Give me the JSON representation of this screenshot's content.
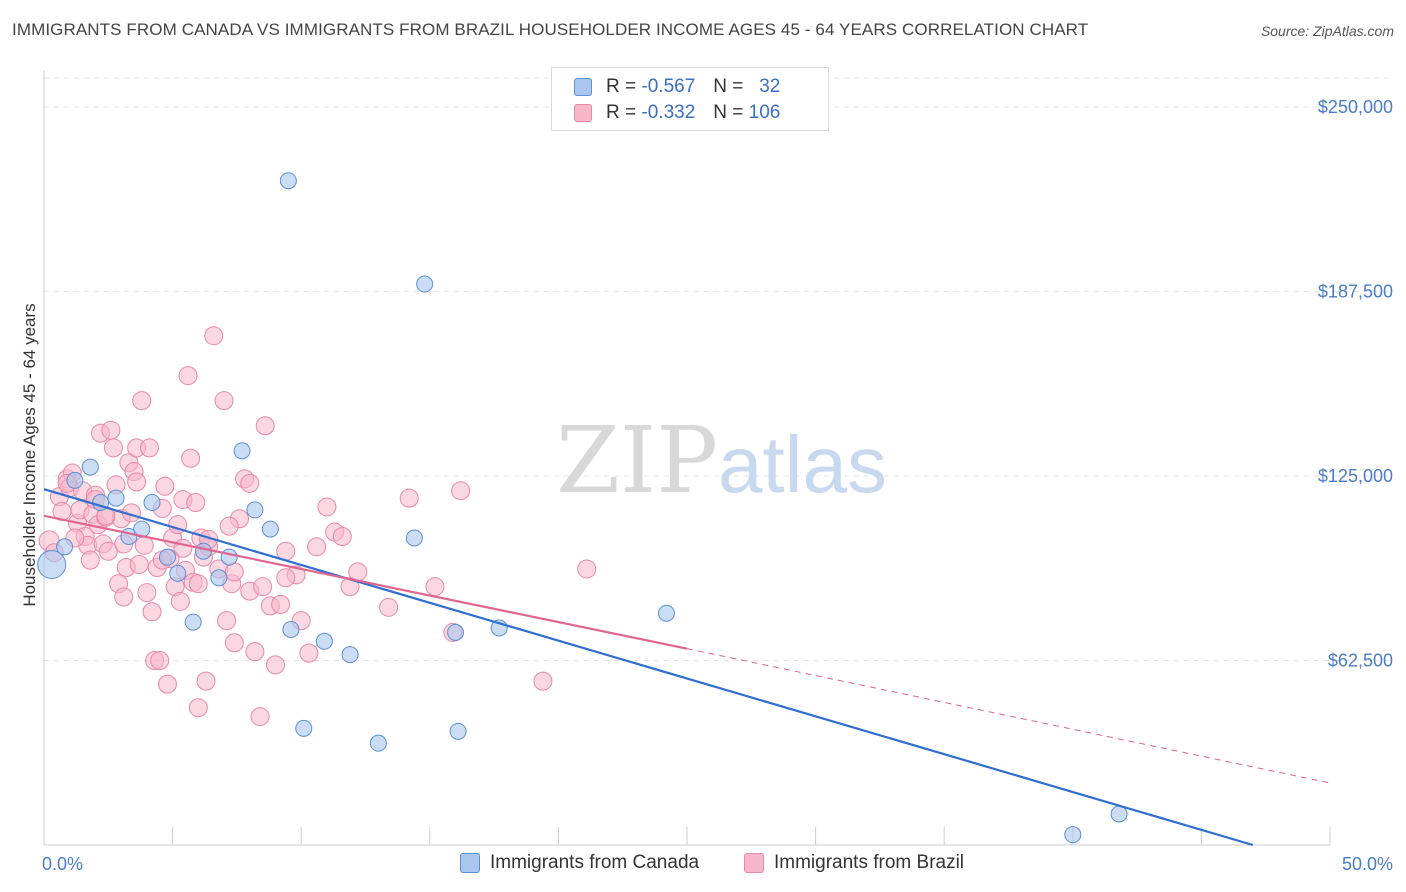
{
  "title": "IMMIGRANTS FROM CANADA VS IMMIGRANTS FROM BRAZIL HOUSEHOLDER INCOME AGES 45 - 64 YEARS CORRELATION CHART",
  "source": "Source: ZipAtlas.com",
  "watermark": {
    "zip": "ZIP",
    "atlas": "atlas"
  },
  "legend": {
    "r_label": "R =",
    "n_label": "N =",
    "canada": {
      "r": "-0.567",
      "n": "32"
    },
    "brazil": {
      "r": "-0.332",
      "n": "106"
    }
  },
  "colors": {
    "canada_fill": "#a9c6ee",
    "canada_stroke": "#5b8fd6",
    "canada_line": "#2f6fd0",
    "brazil_fill": "#f7b7cb",
    "brazil_stroke": "#e888a8",
    "brazil_line": "#e0658f",
    "tick_label": "#4a7cc7",
    "grid": "#e3e3e3"
  },
  "chart_data": {
    "type": "scatter",
    "title": "IMMIGRANTS FROM CANADA VS IMMIGRANTS FROM BRAZIL HOUSEHOLDER INCOME AGES 45 - 64 YEARS CORRELATION CHART",
    "xlabel": "",
    "ylabel": "Householder Income Ages 45 - 64 years",
    "xlim": [
      0,
      50
    ],
    "ylim": [
      0,
      262500
    ],
    "x_tick_labels": [
      "0.0%",
      "50.0%"
    ],
    "y_ticks": [
      62500,
      125000,
      187500,
      250000
    ],
    "y_tick_labels": [
      "$62,500",
      "$125,000",
      "$187,500",
      "$250,000"
    ],
    "grid": true,
    "legend_position": "top-center",
    "series": [
      {
        "name": "Immigrants from Canada",
        "trend": {
          "x": [
            0,
            47.0
          ],
          "y": [
            120500,
            0
          ]
        },
        "points": [
          [
            0.3,
            95000,
            14
          ],
          [
            1.2,
            123500,
            8
          ],
          [
            1.8,
            128000,
            8
          ],
          [
            2.2,
            116000,
            8
          ],
          [
            2.8,
            117500,
            8
          ],
          [
            3.3,
            104500,
            8
          ],
          [
            3.8,
            107000,
            8
          ],
          [
            4.2,
            116000,
            8
          ],
          [
            4.8,
            97500,
            8
          ],
          [
            5.2,
            92000,
            8
          ],
          [
            5.8,
            75500,
            8
          ],
          [
            6.2,
            99500,
            8
          ],
          [
            6.8,
            90500,
            8
          ],
          [
            7.2,
            97500,
            8
          ],
          [
            7.7,
            133500,
            8
          ],
          [
            8.2,
            113500,
            8
          ],
          [
            8.8,
            107000,
            8
          ],
          [
            9.6,
            73000,
            8
          ],
          [
            9.5,
            225000,
            8
          ],
          [
            10.1,
            39500,
            8
          ],
          [
            10.9,
            69000,
            8
          ],
          [
            11.9,
            64500,
            8
          ],
          [
            13.0,
            34500,
            8
          ],
          [
            14.4,
            104000,
            8
          ],
          [
            14.8,
            190000,
            8
          ],
          [
            16.0,
            72000,
            8
          ],
          [
            16.1,
            38500,
            8
          ],
          [
            17.7,
            73500,
            8
          ],
          [
            24.2,
            78500,
            8
          ],
          [
            40.0,
            3500,
            8
          ],
          [
            41.8,
            10500,
            8
          ],
          [
            0.8,
            101000,
            8
          ]
        ]
      },
      {
        "name": "Immigrants from Brazil",
        "trend": {
          "x": [
            0,
            25.0
          ],
          "y": [
            111500,
            66500
          ]
        },
        "trend_ext": {
          "x": [
            25.0,
            50
          ],
          "y": [
            66500,
            21000
          ]
        },
        "points": [
          [
            0.2,
            103000,
            10
          ],
          [
            0.4,
            99000,
            9
          ],
          [
            0.6,
            118000,
            9
          ],
          [
            0.7,
            113000,
            9
          ],
          [
            0.9,
            124000,
            9
          ],
          [
            1.0,
            121000,
            9
          ],
          [
            1.1,
            126000,
            9
          ],
          [
            1.3,
            109000,
            9
          ],
          [
            1.4,
            113500,
            9
          ],
          [
            1.5,
            120000,
            9
          ],
          [
            1.6,
            104500,
            9
          ],
          [
            1.7,
            101500,
            9
          ],
          [
            1.8,
            96500,
            9
          ],
          [
            1.9,
            112000,
            9
          ],
          [
            2.0,
            118500,
            9
          ],
          [
            2.1,
            108500,
            9
          ],
          [
            2.2,
            139500,
            9
          ],
          [
            2.3,
            102000,
            9
          ],
          [
            2.4,
            111000,
            9
          ],
          [
            2.5,
            99500,
            9
          ],
          [
            2.6,
            140500,
            9
          ],
          [
            2.7,
            134500,
            9
          ],
          [
            2.8,
            122000,
            9
          ],
          [
            2.9,
            88500,
            9
          ],
          [
            3.0,
            110500,
            9
          ],
          [
            3.1,
            84000,
            9
          ],
          [
            3.2,
            94000,
            9
          ],
          [
            3.3,
            129500,
            9
          ],
          [
            3.4,
            112500,
            9
          ],
          [
            3.5,
            126500,
            9
          ],
          [
            3.6,
            134500,
            9
          ],
          [
            3.7,
            95000,
            9
          ],
          [
            3.8,
            150500,
            9
          ],
          [
            3.9,
            101500,
            9
          ],
          [
            4.0,
            85500,
            9
          ],
          [
            4.1,
            134500,
            9
          ],
          [
            4.2,
            79000,
            9
          ],
          [
            4.3,
            62500,
            9
          ],
          [
            4.4,
            94000,
            9
          ],
          [
            4.5,
            62500,
            9
          ],
          [
            4.6,
            114000,
            9
          ],
          [
            4.7,
            121500,
            9
          ],
          [
            4.8,
            54500,
            9
          ],
          [
            4.9,
            97000,
            9
          ],
          [
            5.0,
            104000,
            9
          ],
          [
            5.1,
            87500,
            9
          ],
          [
            5.2,
            108500,
            9
          ],
          [
            5.3,
            82500,
            9
          ],
          [
            5.4,
            117000,
            9
          ],
          [
            5.5,
            93000,
            9
          ],
          [
            5.6,
            159000,
            9
          ],
          [
            5.7,
            131000,
            9
          ],
          [
            5.8,
            89000,
            9
          ],
          [
            5.9,
            116000,
            9
          ],
          [
            6.0,
            46500,
            9
          ],
          [
            6.1,
            104000,
            9
          ],
          [
            6.2,
            97500,
            9
          ],
          [
            6.3,
            55500,
            9
          ],
          [
            6.4,
            101000,
            9
          ],
          [
            6.6,
            172500,
            9
          ],
          [
            6.8,
            93500,
            9
          ],
          [
            7.0,
            150500,
            9
          ],
          [
            7.1,
            76000,
            9
          ],
          [
            7.3,
            88500,
            9
          ],
          [
            7.4,
            68500,
            9
          ],
          [
            7.6,
            110500,
            9
          ],
          [
            7.8,
            124000,
            9
          ],
          [
            8.0,
            86000,
            9
          ],
          [
            8.2,
            65500,
            9
          ],
          [
            8.4,
            43500,
            9
          ],
          [
            8.5,
            87500,
            9
          ],
          [
            8.6,
            142000,
            9
          ],
          [
            8.8,
            81000,
            9
          ],
          [
            9.0,
            61000,
            9
          ],
          [
            9.2,
            81500,
            9
          ],
          [
            9.4,
            99500,
            9
          ],
          [
            9.8,
            91500,
            9
          ],
          [
            10.0,
            76000,
            9
          ],
          [
            10.3,
            65000,
            9
          ],
          [
            10.6,
            101000,
            9
          ],
          [
            11.0,
            114500,
            9
          ],
          [
            11.3,
            106000,
            9
          ],
          [
            11.6,
            104500,
            9
          ],
          [
            11.9,
            87500,
            9
          ],
          [
            12.2,
            92500,
            9
          ],
          [
            13.4,
            80500,
            9
          ],
          [
            14.2,
            117500,
            9
          ],
          [
            15.2,
            87500,
            9
          ],
          [
            15.9,
            72000,
            9
          ],
          [
            16.2,
            120000,
            9
          ],
          [
            19.4,
            55500,
            9
          ],
          [
            21.1,
            93500,
            9
          ],
          [
            0.9,
            122500,
            9
          ],
          [
            1.2,
            104000,
            9
          ],
          [
            2.4,
            111500,
            9
          ],
          [
            3.6,
            123000,
            9
          ],
          [
            4.6,
            96500,
            9
          ],
          [
            5.4,
            100500,
            9
          ],
          [
            6.0,
            88500,
            9
          ],
          [
            6.4,
            103500,
            9
          ],
          [
            7.4,
            92500,
            9
          ],
          [
            7.2,
            108000,
            9
          ],
          [
            9.4,
            90500,
            9
          ],
          [
            8.0,
            122500,
            9
          ],
          [
            2.0,
            117000,
            9
          ],
          [
            3.1,
            102000,
            9
          ]
        ]
      }
    ]
  },
  "bottom_legend": {
    "canada": "Immigrants from Canada",
    "brazil": "Immigrants from Brazil"
  }
}
